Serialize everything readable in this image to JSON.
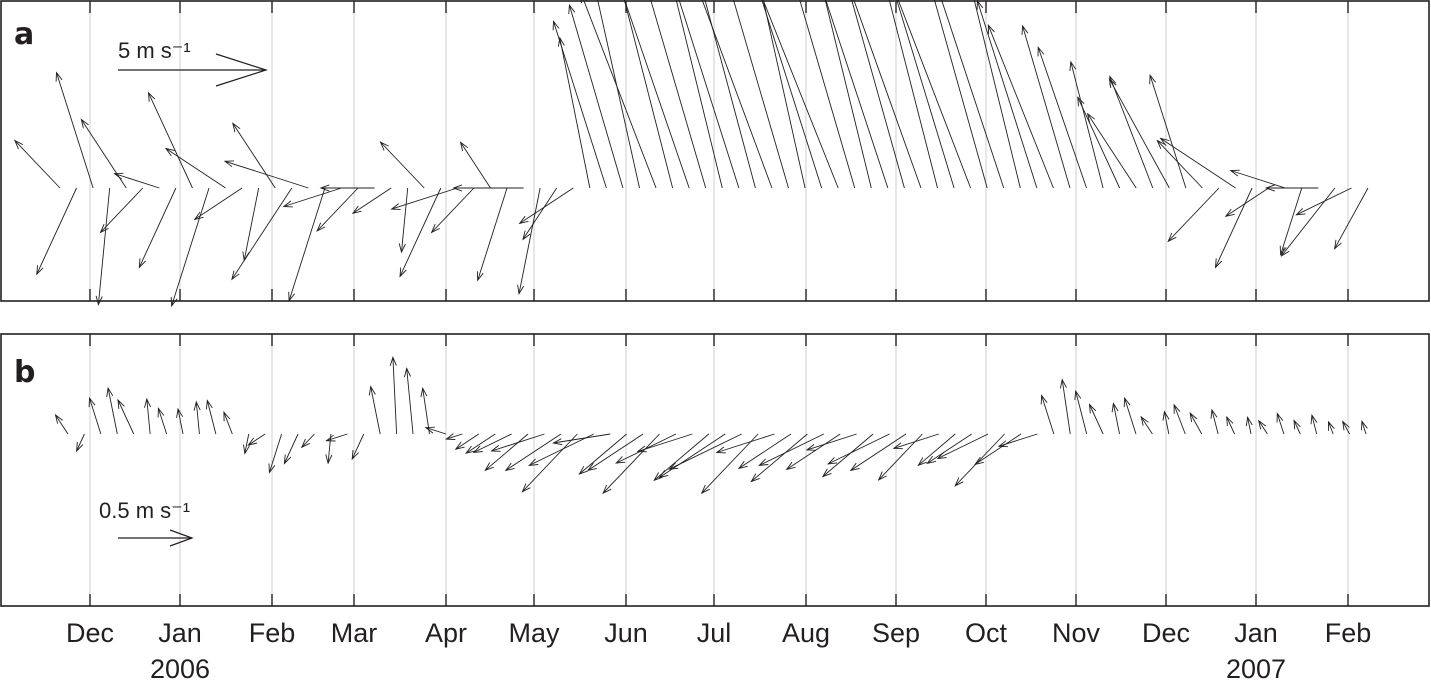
{
  "chart_data": [
    {
      "type": "stick-vector",
      "panel_label": "a",
      "scale_label": "5 m s⁻¹",
      "scale_value": 5,
      "series": {
        "speed": [
          3.2,
          3.8,
          4.5,
          4.0,
          3.6,
          3.0,
          2.8,
          3.5,
          4.2,
          4.6,
          3.9,
          3.1,
          2.6,
          3.4,
          4.8,
          5.2,
          4.4,
          3.6,
          2.9,
          3.3,
          2.5,
          2.2,
          3.1,
          3.9,
          4.1,
          3.0,
          2.4,
          3.6,
          4.3,
          3.8,
          2.7,
          3.5,
          5.4,
          6.5,
          7.0,
          7.6,
          8.0,
          8.4,
          8.9,
          9.3,
          9.6,
          10.2,
          10.5,
          10.0,
          9.6,
          10.3,
          10.6,
          10.2,
          9.9,
          10.4,
          10.1,
          9.7,
          9.8,
          10.2,
          9.4,
          9.0,
          8.8,
          8.4,
          8.0,
          7.3,
          6.8,
          6.2,
          5.6,
          4.7,
          4.0,
          3.9,
          4.6,
          5.2,
          4.4,
          3.2,
          3.6,
          4.9,
          3.5,
          2.8,
          3.4,
          2.6,
          3.2,
          4.0,
          3.5,
          2.9
        ],
        "direction_deg": [
          150,
          230,
          120,
          260,
          140,
          210,
          170,
          230,
          130,
          240,
          160,
          200,
          250,
          140,
          220,
          170,
          240,
          190,
          210,
          180,
          200,
          260,
          150,
          230,
          190,
          210,
          140,
          240,
          180,
          250,
          220,
          200,
          110,
          120,
          118,
          112,
          125,
          115,
          122,
          118,
          114,
          120,
          116,
          124,
          118,
          112,
          120,
          126,
          118,
          114,
          121,
          117,
          123,
          115,
          119,
          125,
          117,
          121,
          114,
          120,
          126,
          118,
          122,
          115,
          130,
          140,
          125,
          135,
          120,
          150,
          210,
          160,
          230,
          200,
          170,
          240,
          180,
          215,
          195,
          225
        ]
      }
    },
    {
      "type": "stick-vector",
      "panel_label": "b",
      "scale_label": "0.5 m s⁻¹",
      "scale_value": 0.5,
      "series": {
        "speed": [
          0.2,
          0.15,
          0.28,
          0.33,
          0.3,
          0.24,
          0.2,
          0.18,
          0.22,
          0.25,
          0.18,
          0.14,
          0.22,
          0.3,
          0.26,
          0.18,
          0.2,
          0.26,
          0.22,
          0.34,
          0.52,
          0.45,
          0.32,
          0.25,
          0.2,
          0.3,
          0.38,
          0.48,
          0.58,
          0.66,
          0.72,
          0.78,
          0.82,
          0.7,
          0.64,
          0.72,
          0.8,
          0.76,
          0.68,
          0.74,
          0.86,
          0.92,
          0.8,
          0.72,
          0.68,
          0.76,
          0.82,
          0.7,
          0.62,
          0.68,
          0.78,
          0.72,
          0.62,
          0.56,
          0.5,
          0.58,
          0.64,
          0.7,
          0.6,
          0.48,
          0.3,
          0.38,
          0.32,
          0.26,
          0.22,
          0.28,
          0.18,
          0.16,
          0.24,
          0.2,
          0.18,
          0.15,
          0.12,
          0.14,
          0.16,
          0.12,
          0.14,
          0.1,
          0.12,
          0.1
        ],
        "direction_deg": [
          140,
          230,
          120,
          110,
          130,
          100,
          120,
          110,
          100,
          115,
          125,
          250,
          200,
          240,
          230,
          210,
          260,
          190,
          230,
          110,
          95,
          100,
          105,
          170,
          190,
          200,
          200,
          195,
          205,
          190,
          200,
          210,
          195,
          185,
          205,
          200,
          210,
          195,
          190,
          205,
          200,
          195,
          210,
          190,
          200,
          205,
          195,
          200,
          190,
          205,
          195,
          200,
          210,
          190,
          205,
          200,
          195,
          210,
          200,
          190,
          120,
          105,
          115,
          130,
          110,
          120,
          140,
          110,
          125,
          135,
          115,
          130,
          110,
          140,
          120,
          130,
          115,
          125,
          135,
          120
        ]
      }
    }
  ],
  "axis": {
    "months": [
      "Dec",
      "Jan",
      "Feb",
      "Mar",
      "Apr",
      "May",
      "Jun",
      "Jul",
      "Aug",
      "Sep",
      "Oct",
      "Nov",
      "Dec",
      "Jan",
      "Feb"
    ],
    "year_labels": [
      {
        "under_month": 1,
        "label": "2006"
      },
      {
        "under_month": 13,
        "label": "2007"
      }
    ]
  }
}
